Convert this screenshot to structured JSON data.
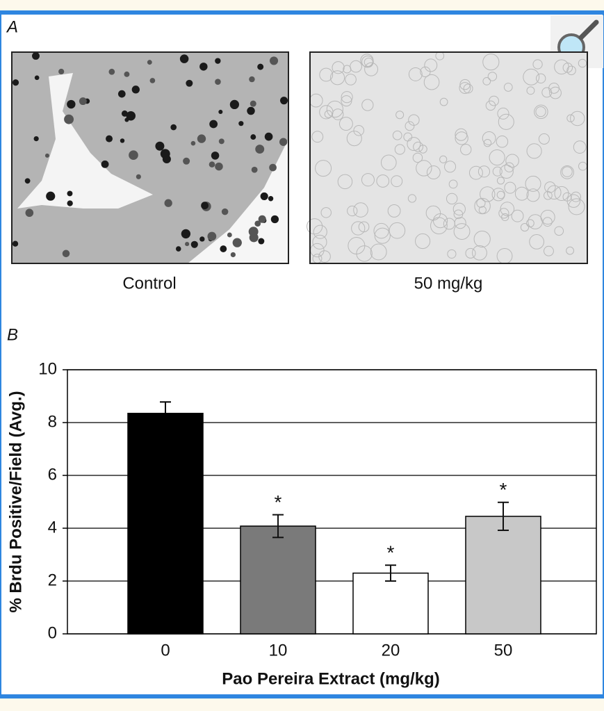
{
  "panels": [
    {
      "letter": "A",
      "images": [
        {
          "caption": "Control"
        },
        {
          "caption": "50 mg/kg"
        }
      ]
    },
    {
      "letter": "B"
    }
  ],
  "chart_data": {
    "type": "bar",
    "y_label": "% Brdu Positive/Field (Avg.)",
    "x_label": "Pao Pereira Extract (mg/kg)",
    "categories": [
      "0",
      "10",
      "20",
      "50"
    ],
    "values": [
      8.35,
      4.08,
      2.3,
      4.45
    ],
    "errors": [
      0.43,
      0.43,
      0.3,
      0.53
    ],
    "annotations": [
      null,
      "*",
      "*",
      "*"
    ],
    "colors": [
      "#000000",
      "#7a7a7a",
      "#ffffff",
      "#c8c8c8"
    ],
    "ylim": [
      0,
      10
    ],
    "yticks": [
      0,
      2,
      4,
      6,
      8,
      10
    ],
    "grid": true
  }
}
